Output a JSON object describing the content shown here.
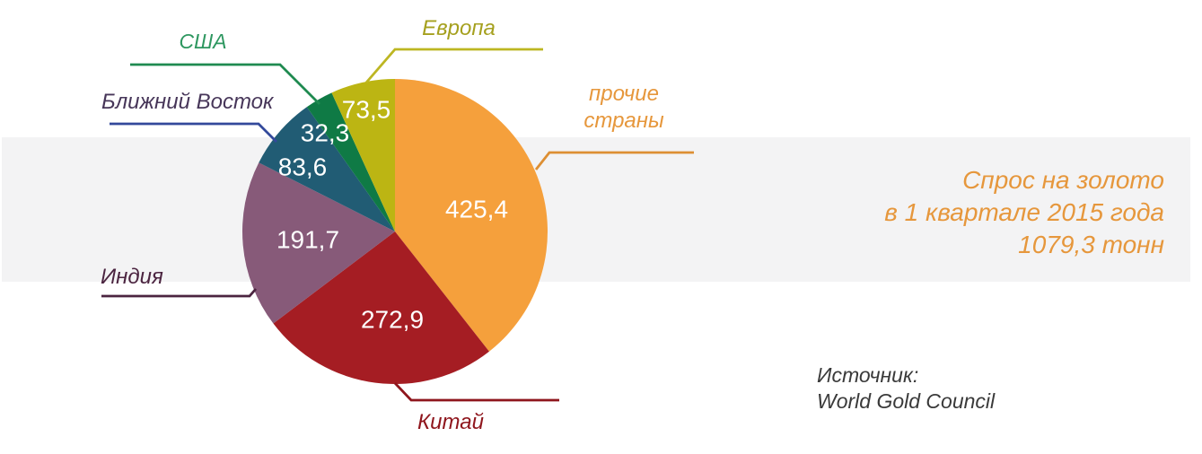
{
  "page": {
    "background": "#FFFFFF",
    "band_color": "#F3F3F4"
  },
  "summary": {
    "line1": "Спрос на золото",
    "line2": "в 1 квартале 2015 года",
    "line3": "1079,3 тонн",
    "color": "#E6973C"
  },
  "source": {
    "label": "Источник:",
    "name": "World Gold Council",
    "color": "#3A3A3A"
  },
  "chart_data": {
    "type": "pie",
    "title": "Спрос на золото в 1 квартале 2015 года",
    "total_label": "1079,3 тонн",
    "total_value": 1079.3,
    "unit": "тонн",
    "start_angle_deg": 0,
    "direction": "clockwise",
    "legend_position": "callout-labels",
    "value_text_color": "#FFFFFF",
    "slices": [
      {
        "key": "others",
        "label": "прочие страны",
        "value": 425.4,
        "value_label": "425,4",
        "color": "#F5A03C",
        "label_color": "#E6973C",
        "line_color": "#DD8F33"
      },
      {
        "key": "china",
        "label": "Китай",
        "value": 272.9,
        "value_label": "272,9",
        "color": "#A51D23",
        "label_color": "#8F161D",
        "line_color": "#8F161D"
      },
      {
        "key": "india",
        "label": "Индия",
        "value": 191.7,
        "value_label": "191,7",
        "color": "#875A79",
        "label_color": "#4B2440",
        "line_color": "#4B2440"
      },
      {
        "key": "middle-east",
        "label": "Ближний Восток",
        "value": 83.6,
        "value_label": "83,6",
        "color": "#215C74",
        "label_color": "#473659",
        "line_color": "#33499B"
      },
      {
        "key": "usa",
        "label": "США",
        "value": 32.3,
        "value_label": "32,3",
        "color": "#0F7A45",
        "label_color": "#2E9760",
        "line_color": "#1F8A50"
      },
      {
        "key": "europe",
        "label": "Европа",
        "value": 73.5,
        "value_label": "73,5",
        "color": "#BCB513",
        "label_color": "#A5A01E",
        "line_color": "#BDB622"
      }
    ]
  }
}
